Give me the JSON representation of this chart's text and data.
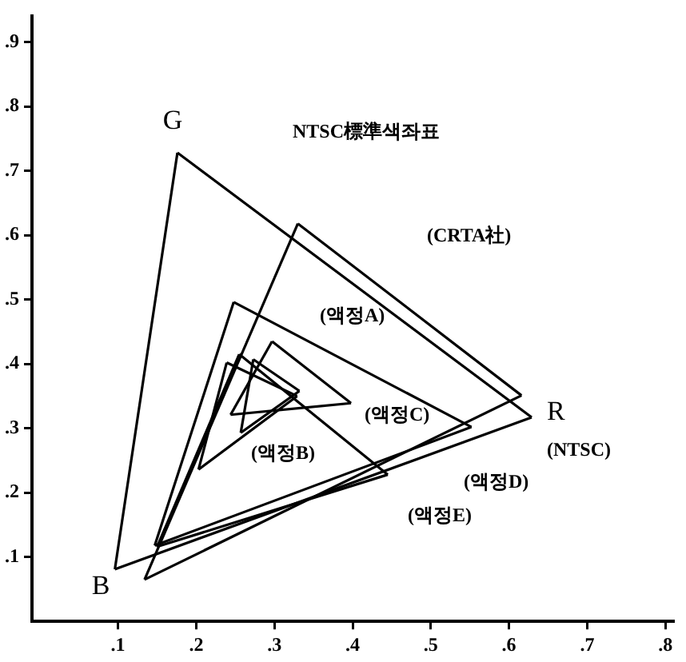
{
  "chart_data": {
    "type": "line",
    "xlim": [
      -0.01,
      0.81
    ],
    "ylim": [
      0,
      0.94
    ],
    "xticks": [
      {
        "value": 0.1,
        "label": ".1"
      },
      {
        "value": 0.2,
        "label": ".2"
      },
      {
        "value": 0.3,
        "label": ".3"
      },
      {
        "value": 0.4,
        "label": ".4"
      },
      {
        "value": 0.5,
        "label": ".5"
      },
      {
        "value": 0.6,
        "label": ".6"
      },
      {
        "value": 0.7,
        "label": ".7"
      },
      {
        "value": 0.8,
        "label": ".8"
      }
    ],
    "yticks": [
      {
        "value": 0.1,
        "label": ".1"
      },
      {
        "value": 0.2,
        "label": ".2"
      },
      {
        "value": 0.3,
        "label": ".3"
      },
      {
        "value": 0.4,
        "label": ".4"
      },
      {
        "value": 0.5,
        "label": ".5"
      },
      {
        "value": 0.6,
        "label": ".6"
      },
      {
        "value": 0.7,
        "label": ".7"
      },
      {
        "value": 0.8,
        "label": ".8"
      },
      {
        "value": 0.9,
        "label": ".9"
      }
    ],
    "grid": false,
    "legend": false,
    "marker": "none",
    "line_style": "solid",
    "series": [
      {
        "color": "#000000",
        "x": [
          0.176,
          0.629
        ],
        "values": [
          0.728,
          0.317
        ]
      },
      {
        "color": "#000000",
        "x": [
          0.096,
          0.629
        ],
        "values": [
          0.081,
          0.317
        ]
      },
      {
        "color": "#000000",
        "x": [
          0.096,
          0.176
        ],
        "values": [
          0.081,
          0.728
        ]
      },
      {
        "color": "#000000",
        "x": [
          0.33,
          0.616
        ],
        "values": [
          0.618,
          0.351
        ]
      },
      {
        "color": "#000000",
        "x": [
          0.134,
          0.616
        ],
        "values": [
          0.065,
          0.351
        ]
      },
      {
        "color": "#000000",
        "x": [
          0.134,
          0.33
        ],
        "values": [
          0.065,
          0.618
        ]
      },
      {
        "color": "#000000",
        "x": [
          0.248,
          0.552
        ],
        "values": [
          0.496,
          0.302
        ]
      },
      {
        "color": "#000000",
        "x": [
          0.147,
          0.552
        ],
        "values": [
          0.118,
          0.302
        ]
      },
      {
        "color": "#000000",
        "x": [
          0.147,
          0.248
        ],
        "values": [
          0.118,
          0.496
        ]
      },
      {
        "color": "#000000",
        "x": [
          0.255,
          0.445
        ],
        "values": [
          0.415,
          0.228
        ]
      },
      {
        "color": "#000000",
        "x": [
          0.15,
          0.445
        ],
        "values": [
          0.116,
          0.228
        ]
      },
      {
        "color": "#000000",
        "x": [
          0.15,
          0.255
        ],
        "values": [
          0.116,
          0.415
        ]
      },
      {
        "color": "#000000",
        "x": [
          0.297,
          0.398
        ],
        "values": [
          0.435,
          0.339
        ]
      },
      {
        "color": "#000000",
        "x": [
          0.244,
          0.398
        ],
        "values": [
          0.321,
          0.339
        ]
      },
      {
        "color": "#000000",
        "x": [
          0.244,
          0.297
        ],
        "values": [
          0.321,
          0.435
        ]
      },
      {
        "color": "#000000",
        "x": [
          0.273,
          0.332
        ],
        "values": [
          0.407,
          0.358
        ]
      },
      {
        "color": "#000000",
        "x": [
          0.257,
          0.332
        ],
        "values": [
          0.293,
          0.358
        ]
      },
      {
        "color": "#000000",
        "x": [
          0.257,
          0.273
        ],
        "values": [
          0.293,
          0.407
        ]
      },
      {
        "color": "#000000",
        "x": [
          0.239,
          0.329
        ],
        "values": [
          0.402,
          0.35
        ]
      },
      {
        "color": "#000000",
        "x": [
          0.203,
          0.329
        ],
        "values": [
          0.236,
          0.35
        ]
      },
      {
        "color": "#000000",
        "x": [
          0.203,
          0.239
        ],
        "values": [
          0.236,
          0.402
        ]
      }
    ],
    "annotations": [
      "G",
      "R",
      "B",
      "NTSC標準색좌표",
      "(CRTA社)",
      "(액정A)",
      "(액정C)",
      "(액정B)",
      "(NTSC)",
      "(액정D)",
      "(액정E)"
    ]
  }
}
